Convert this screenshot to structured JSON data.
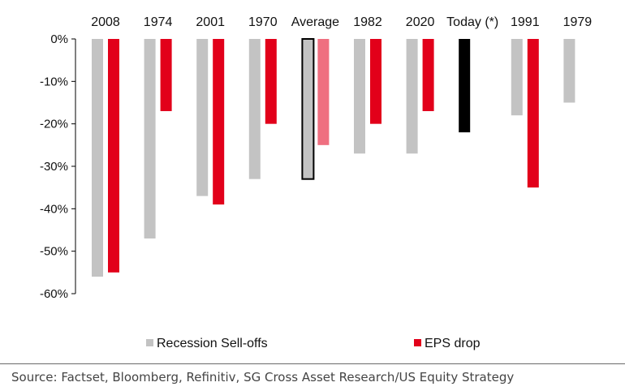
{
  "chart_data": {
    "type": "bar",
    "categories": [
      "2008",
      "1974",
      "2001",
      "1970",
      "Average",
      "1982",
      "2020",
      "Today (*)",
      "1991",
      "1979"
    ],
    "series": [
      {
        "name": "Recession Sell-offs",
        "values": [
          -56,
          -47,
          -37,
          -33,
          -33,
          -27,
          -27,
          -22,
          -18,
          -15
        ]
      },
      {
        "name": "EPS drop",
        "values": [
          -55,
          -17,
          -39,
          -20,
          -25,
          -20,
          -17,
          null,
          -35,
          null
        ]
      }
    ],
    "highlights": {
      "Average": {
        "sell_off_style": "outlined",
        "eps_style": "light"
      },
      "Today (*)": {
        "sell_off_color": "#000000"
      }
    },
    "ylim": [
      -60,
      0
    ],
    "yticks": [
      0,
      -10,
      -20,
      -30,
      -40,
      -50,
      -60
    ],
    "ytick_labels": [
      "0%",
      "-10%",
      "-20%",
      "-30%",
      "-40%",
      "-50%",
      "-60%"
    ],
    "category_labels_position": "top",
    "grid": false,
    "legend_position": "bottom",
    "colors": {
      "sell_offs": "#c3c3c3",
      "eps": "#e2001a",
      "eps_average": "#ef6f80",
      "today": "#000000",
      "axis": "#000000"
    }
  },
  "legend": {
    "items": [
      {
        "label": "Recession Sell-offs",
        "color": "#c3c3c3"
      },
      {
        "label": "EPS drop",
        "color": "#e2001a"
      }
    ]
  },
  "source": "Source: Factset, Bloomberg, Refinitiv, SG Cross Asset Research/US Equity Strategy"
}
